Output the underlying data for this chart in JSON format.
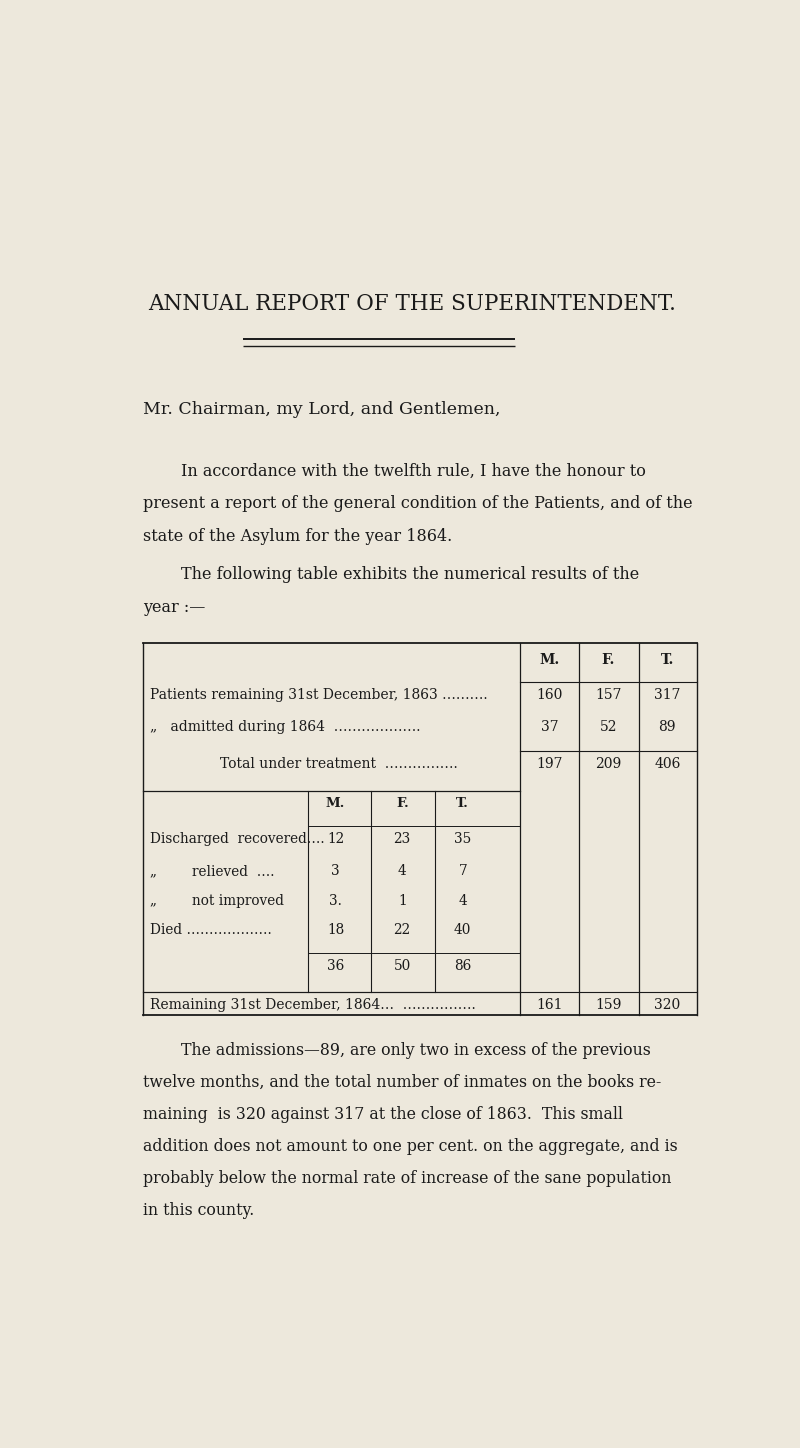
{
  "bg_color": "#ede8dc",
  "text_color": "#1a1a1a",
  "title": "ANNUAL REPORT OF THE SUPERINTENDENT.",
  "salutation": "Mr. Chairman, my Lord, and Gentlemen,",
  "para1_lines": [
    "In accordance with the twelfth rule, I have the honour to",
    "present a report of the general condition of the Patients, and of the",
    "state of the Asylum for the year 1864."
  ],
  "intro_lines": [
    "The following table exhibits the numerical results of the",
    "year :—"
  ],
  "footer_lines": [
    "The admissions—89, are only two in excess of the previous",
    "twelve months, and the total number of inmates on the books re-",
    "maining  is 320 against 317 at the close of 1863.  This small",
    "addition does not amount to one per cent. on the aggregate, and is",
    "probably below the normal rate of increase of the sane population",
    "in this county."
  ],
  "table": {
    "header_cols": [
      "M.",
      "F.",
      "T."
    ],
    "row1_label": "Patients remaining 31st December, 1863 ……….",
    "row1_vals": [
      "160",
      "157",
      "317"
    ],
    "row2_label": "„   admitted during 1864  ……………….",
    "row2_vals": [
      "37",
      "52",
      "89"
    ],
    "row3_label": "Total under treatment  …………….",
    "row3_vals": [
      "197",
      "209",
      "406"
    ],
    "inner_header": [
      "M.",
      "F.",
      "T."
    ],
    "discharged_label": "Discharged  recovered….",
    "discharged_vals": [
      "12",
      "23",
      "35"
    ],
    "relieved_label": "„        relieved  ….",
    "relieved_vals": [
      "3",
      "4",
      "7"
    ],
    "not_improved_label": "„        not improved",
    "not_improved_vals": [
      "3.",
      "1",
      "4"
    ],
    "died_label": "Died ……………….",
    "died_vals": [
      "18",
      "22",
      "40"
    ],
    "subtotal_vals": [
      "36",
      "50",
      "86"
    ],
    "remaining_label": "Remaining 31st December, 1864…  …………….",
    "remaining_vals": [
      "161",
      "159",
      "320"
    ]
  }
}
